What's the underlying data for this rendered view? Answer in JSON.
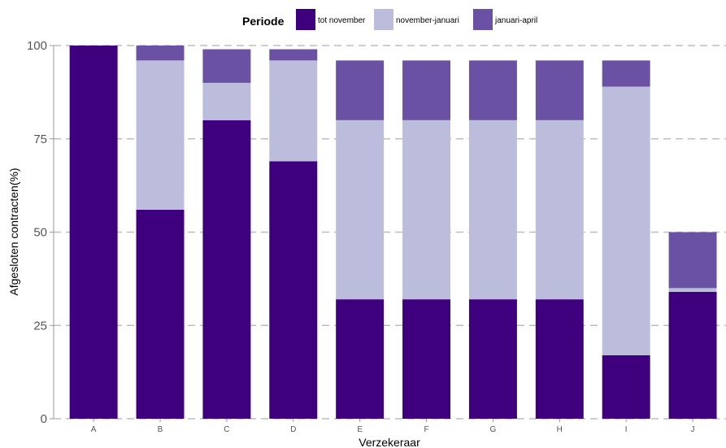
{
  "chart_data": {
    "type": "bar",
    "stacked": true,
    "categories": [
      "A",
      "B",
      "C",
      "D",
      "E",
      "F",
      "G",
      "H",
      "I",
      "J"
    ],
    "series": [
      {
        "name": "tot november",
        "color": "#3f007d",
        "values": [
          100,
          56,
          80,
          69,
          32,
          32,
          32,
          32,
          17,
          34
        ]
      },
      {
        "name": "november-januari",
        "color": "#bcbddc",
        "values": [
          0,
          40,
          10,
          27,
          48,
          48,
          48,
          48,
          72,
          1
        ]
      },
      {
        "name": "januari-april",
        "color": "#6a51a3",
        "values": [
          0,
          4,
          9,
          3,
          16,
          16,
          16,
          16,
          7,
          15
        ]
      }
    ],
    "legend": {
      "title": "Periode",
      "position": "top"
    },
    "xlabel": "Verzekeraar",
    "ylabel": "Afgesloten contracten(%)",
    "ylim": [
      0,
      100
    ],
    "yticks": [
      0,
      25,
      50,
      75,
      100
    ],
    "grid": "horizontal dashed"
  }
}
